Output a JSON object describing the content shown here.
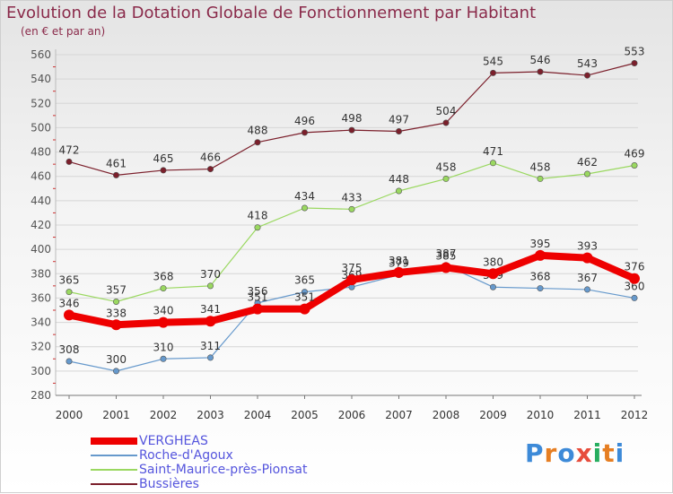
{
  "title": "Evolution de la Dotation Globale de Fonctionnement par Habitant",
  "subtitle": "(en € et par an)",
  "logo": {
    "text": "Proxiti",
    "colors": [
      "#3d8ad8",
      "#e67e22",
      "#3d8ad8",
      "#e74c3c",
      "#27ae60",
      "#e67e22",
      "#3d8ad8"
    ]
  },
  "chart_data": {
    "type": "line",
    "title": "Evolution de la Dotation Globale de Fonctionnement par Habitant",
    "ylabel": "(en € et par an)",
    "xlabel": "",
    "ylim": [
      280,
      560
    ],
    "yticks": [
      280,
      300,
      320,
      340,
      360,
      380,
      400,
      420,
      440,
      460,
      480,
      500,
      520,
      540,
      560
    ],
    "x": [
      "2000",
      "2001",
      "2002",
      "2003",
      "2004",
      "2005",
      "2006",
      "2007",
      "2008",
      "2009",
      "2010",
      "2011",
      "2012"
    ],
    "series": [
      {
        "name": "Bussières",
        "color": "#7b1f2b",
        "values": [
          472,
          461,
          465,
          466,
          488,
          496,
          498,
          497,
          504,
          545,
          546,
          543,
          553
        ]
      },
      {
        "name": "Saint-Maurice-près-Pionsat",
        "color": "#9ad860",
        "values": [
          365,
          357,
          368,
          370,
          418,
          434,
          433,
          448,
          458,
          471,
          458,
          462,
          469
        ]
      },
      {
        "name": "Roche-d'Agoux",
        "color": "#6699cc",
        "values": [
          308,
          300,
          310,
          311,
          356,
          365,
          369,
          379,
          387,
          369,
          368,
          367,
          360
        ]
      },
      {
        "name": "VERGHEAS",
        "color": "#ee0000",
        "values": [
          346,
          338,
          340,
          341,
          351,
          351,
          375,
          381,
          385,
          380,
          395,
          393,
          376
        ]
      }
    ]
  },
  "legend": [
    {
      "name": "VERGHEAS",
      "color": "#ee0000"
    },
    {
      "name": "Roche-d'Agoux",
      "color": "#6699cc"
    },
    {
      "name": "Saint-Maurice-près-Pionsat",
      "color": "#9ad860"
    },
    {
      "name": "Bussières",
      "color": "#7b1f2b"
    }
  ]
}
